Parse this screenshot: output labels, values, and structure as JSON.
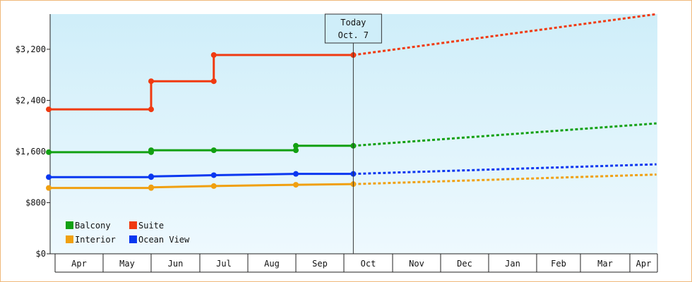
{
  "chart_data": {
    "type": "line",
    "title": "",
    "xlabel": "",
    "ylabel": "",
    "x_months": [
      "Apr",
      "May",
      "Jun",
      "Jul",
      "Aug",
      "Sep",
      "Oct",
      "Nov",
      "Dec",
      "Jan",
      "Feb",
      "Mar",
      "Apr"
    ],
    "yticks": [
      0,
      800,
      1600,
      2400,
      3200
    ],
    "ytick_labels": [
      "$0",
      "$800",
      "$1,600",
      "$2,400",
      "$3,200"
    ],
    "ylim": [
      0,
      3750
    ],
    "grid": false,
    "legend_position": "bottom-left",
    "today_marker": {
      "line1": "Today",
      "line2": "Oct. 7",
      "x": "Oct 7"
    },
    "series": [
      {
        "name": "Balcony",
        "color": "#12a012",
        "actual": [
          {
            "x": "Apr 1",
            "y": 1590
          },
          {
            "x": "Jun 1",
            "y": 1590
          },
          {
            "x": "Jun 1",
            "y": 1620
          },
          {
            "x": "Jul 10",
            "y": 1620
          },
          {
            "x": "Sep 1",
            "y": 1620
          },
          {
            "x": "Sep 1",
            "y": 1690
          },
          {
            "x": "Oct 7",
            "y": 1690
          }
        ],
        "projected": [
          {
            "x": "Oct 7",
            "y": 1690
          },
          {
            "x": "Apr 30",
            "y": 2040
          }
        ]
      },
      {
        "name": "Suite",
        "color": "#f03a10",
        "actual": [
          {
            "x": "Apr 1",
            "y": 2260
          },
          {
            "x": "Jun 1",
            "y": 2260
          },
          {
            "x": "Jun 1",
            "y": 2700
          },
          {
            "x": "Jul 10",
            "y": 2700
          },
          {
            "x": "Jul 10",
            "y": 3110
          },
          {
            "x": "Oct 7",
            "y": 3110
          }
        ],
        "projected": [
          {
            "x": "Oct 7",
            "y": 3110
          },
          {
            "x": "Apr 30",
            "y": 3750
          }
        ]
      },
      {
        "name": "Interior",
        "color": "#f0a010",
        "actual": [
          {
            "x": "Apr 1",
            "y": 1030
          },
          {
            "x": "Jun 1",
            "y": 1030
          },
          {
            "x": "Jun 1",
            "y": 1040
          },
          {
            "x": "Jul 10",
            "y": 1060
          },
          {
            "x": "Sep 1",
            "y": 1080
          },
          {
            "x": "Oct 7",
            "y": 1090
          }
        ],
        "projected": [
          {
            "x": "Oct 7",
            "y": 1090
          },
          {
            "x": "Apr 30",
            "y": 1240
          }
        ]
      },
      {
        "name": "Ocean View",
        "color": "#0a37f0",
        "actual": [
          {
            "x": "Apr 1",
            "y": 1200
          },
          {
            "x": "Jun 1",
            "y": 1200
          },
          {
            "x": "Jun 1",
            "y": 1210
          },
          {
            "x": "Jul 10",
            "y": 1230
          },
          {
            "x": "Sep 1",
            "y": 1250
          },
          {
            "x": "Oct 7",
            "y": 1250
          }
        ],
        "projected": [
          {
            "x": "Oct 7",
            "y": 1250
          },
          {
            "x": "Apr 30",
            "y": 1400
          }
        ]
      }
    ],
    "legend_order": [
      "Balcony",
      "Suite",
      "Interior",
      "Ocean View"
    ]
  }
}
